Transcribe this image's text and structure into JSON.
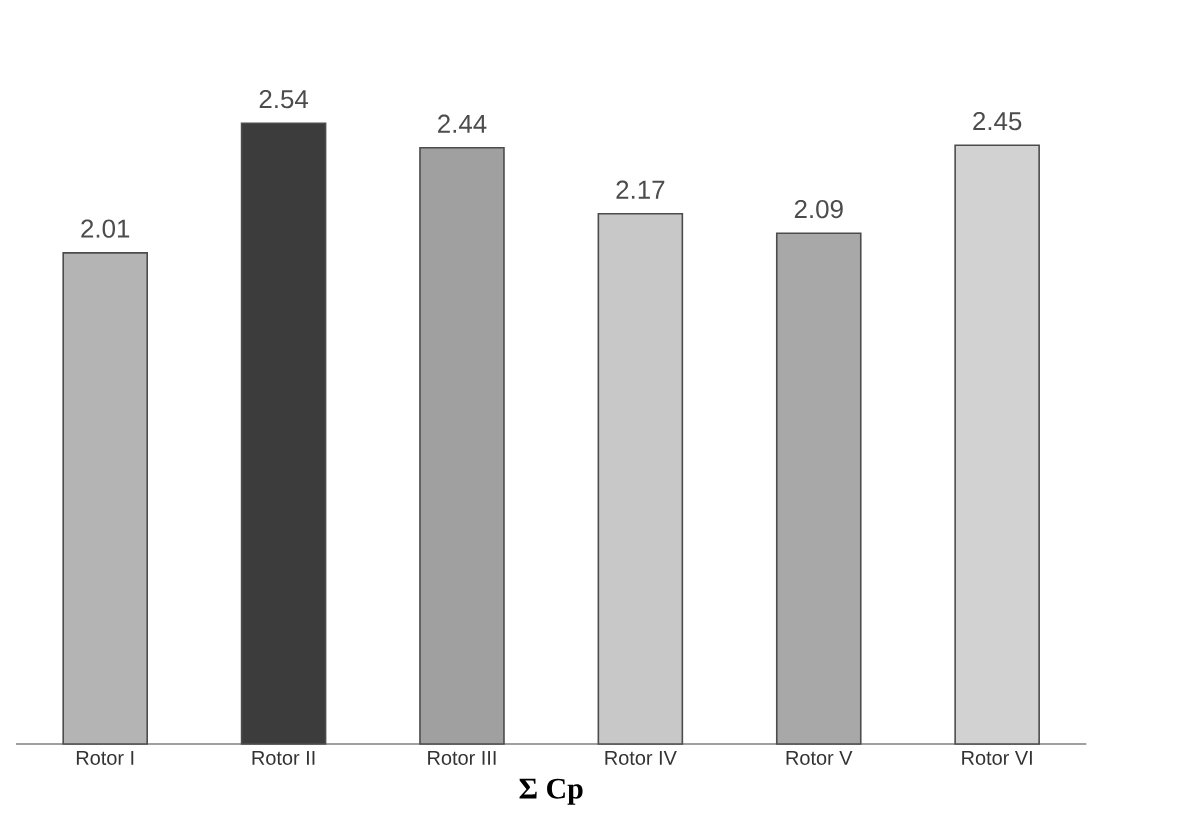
{
  "chart_data": {
    "type": "bar",
    "xlabel": "Σ Cp",
    "categories": [
      "Rotor I",
      "Rotor II",
      "Rotor III",
      "Rotor IV",
      "Rotor V",
      "Rotor VI"
    ],
    "values": [
      2.01,
      2.54,
      2.44,
      2.17,
      2.09,
      2.45
    ],
    "colors": [
      "#b4b4b4",
      "#3c3c3c",
      "#a0a0a0",
      "#c8c8c8",
      "#a8a8a8",
      "#d2d2d2"
    ],
    "data_labels": true
  }
}
